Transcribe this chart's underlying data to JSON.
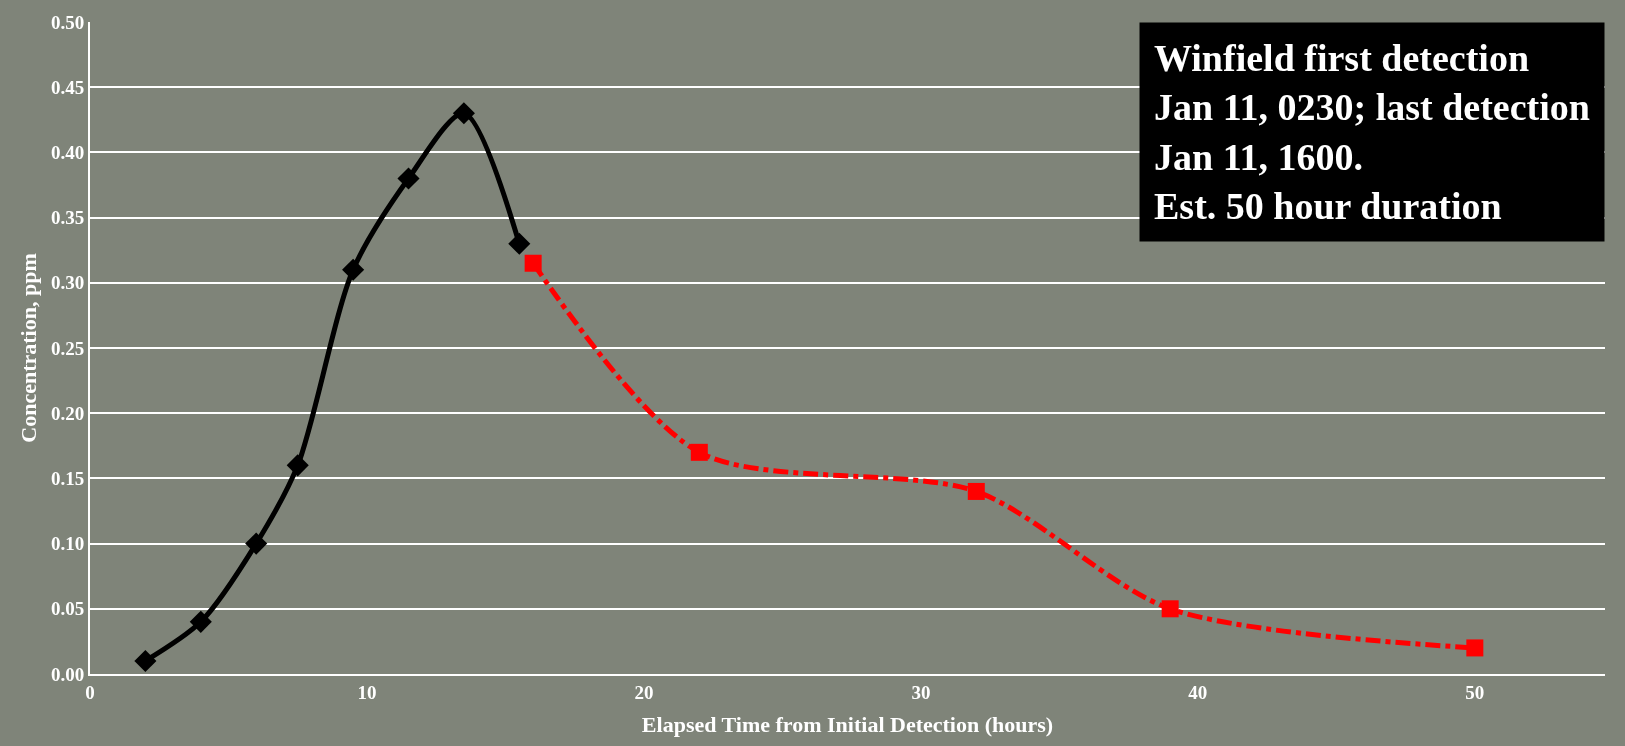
{
  "chart_data": {
    "type": "line",
    "xlabel": "Elapsed Time from Initial Detection (hours)",
    "ylabel": "Concentration, ppm",
    "series": [
      {
        "color": "#000000",
        "marker": "diamond",
        "line_style": "solid",
        "x": [
          2,
          4,
          6,
          7.5,
          9.5,
          11.5,
          13.5,
          15.5
        ],
        "values": [
          0.01,
          0.04,
          0.1,
          0.16,
          0.31,
          0.38,
          0.43,
          0.33
        ]
      },
      {
        "color": "#ff0000",
        "marker": "square",
        "line_style": "dashdot",
        "x": [
          16,
          22,
          32,
          39,
          50
        ],
        "values": [
          0.315,
          0.17,
          0.14,
          0.05,
          0.02
        ]
      }
    ],
    "xlim": [
      0,
      54.7
    ],
    "xticks": [
      0,
      10,
      20,
      30,
      40,
      50
    ],
    "ylim": [
      0,
      0.5
    ],
    "yticks": [
      {
        "value": 0,
        "label": "0.00"
      },
      {
        "value": 0.05,
        "label": "0.05"
      },
      {
        "value": 0.1,
        "label": "0.10"
      },
      {
        "value": 0.15,
        "label": "0.15"
      },
      {
        "value": 0.2,
        "label": "0.20"
      },
      {
        "value": 0.25,
        "label": "0.25"
      },
      {
        "value": 0.3,
        "label": "0.30"
      },
      {
        "value": 0.35,
        "label": "0.35"
      },
      {
        "value": 0.4,
        "label": "0.40"
      },
      {
        "value": 0.45,
        "label": "0.45"
      },
      {
        "value": 0.5,
        "label": "0.50"
      }
    ],
    "grid": "y",
    "annotations": [
      "Winfield first detection\nJan 11, 0230; last detection\nJan 11, 1600.\nEst. 50 hour duration"
    ]
  }
}
